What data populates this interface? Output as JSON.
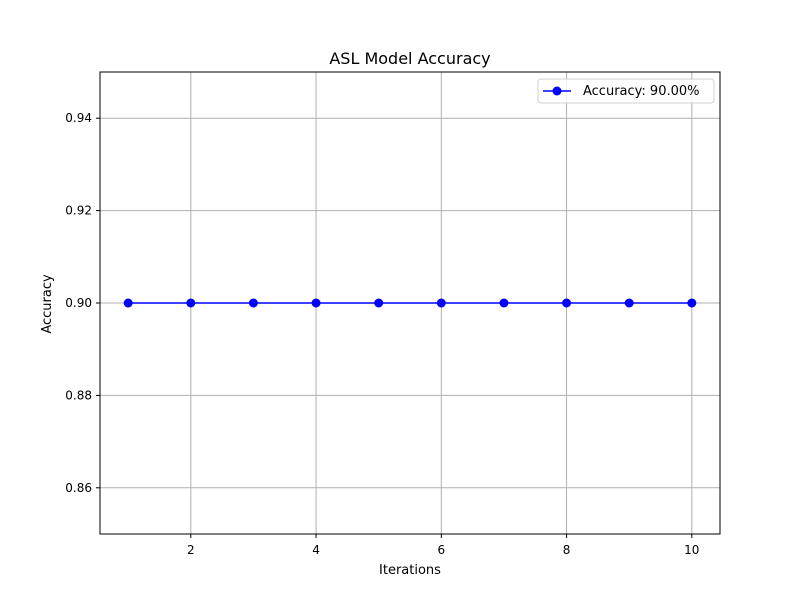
{
  "chart_data": {
    "type": "line",
    "title": "ASL Model Accuracy",
    "xlabel": "Iterations",
    "ylabel": "Accuracy",
    "x": [
      1,
      2,
      3,
      4,
      5,
      6,
      7,
      8,
      9,
      10
    ],
    "series": [
      {
        "name": "Accuracy: 90.00%",
        "values": [
          0.9,
          0.9,
          0.9,
          0.9,
          0.9,
          0.9,
          0.9,
          0.9,
          0.9,
          0.9
        ],
        "color": "#0000ff",
        "marker": "circle"
      }
    ],
    "xlim": [
      0.55,
      10.45
    ],
    "ylim": [
      0.85,
      0.95
    ],
    "xticks": [
      2,
      4,
      6,
      8,
      10
    ],
    "xtick_labels": [
      "2",
      "4",
      "6",
      "8",
      "10"
    ],
    "yticks": [
      0.86,
      0.88,
      0.9,
      0.92,
      0.94
    ],
    "ytick_labels": [
      "0.86",
      "0.88",
      "0.90",
      "0.92",
      "0.94"
    ],
    "grid": true,
    "grid_color": "#b0b0b0",
    "legend_position": "top-right"
  }
}
